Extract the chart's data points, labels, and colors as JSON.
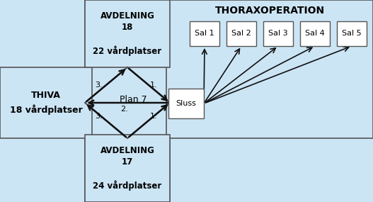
{
  "bg_color": "#cce5f5",
  "box_color": "#ffffff",
  "box_edge": "#555555",
  "title_thorax": "THORAXOPERATION",
  "label_thiva_line1": "THIVA",
  "label_thiva_line2": "18 vårdplatser",
  "label_avd18_line1": "AVDELNING",
  "label_avd18_line2": "18",
  "label_avd18_line3": "22 vårdplatser",
  "label_avd17_line1": "AVDELNING",
  "label_avd17_line2": "17",
  "label_avd17_line3": "24 vårdplatser",
  "label_plan7": "Plan 7",
  "label_sluss": "Sluss",
  "sal_labels": [
    "Sal 1",
    "Sal 2",
    "Sal 3",
    "Sal 4",
    "Sal 5"
  ],
  "arrow_color": "#111111",
  "fig_width": 5.27,
  "fig_height": 2.85,
  "dpi": 100
}
